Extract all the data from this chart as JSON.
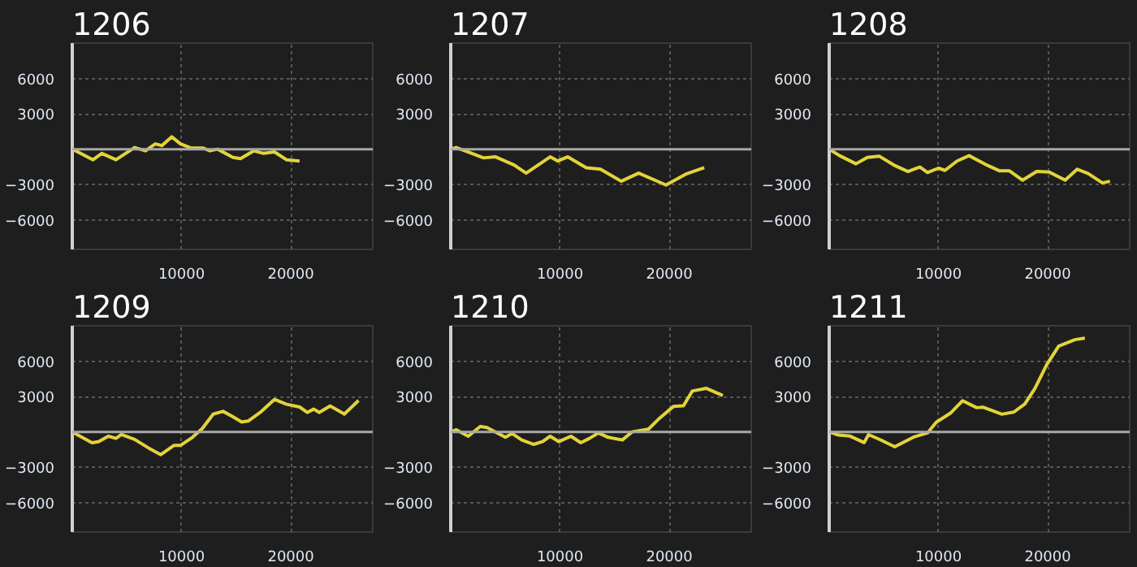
{
  "chart_data": [
    {
      "type": "line",
      "title": "1206",
      "xlim": [
        0,
        27500
      ],
      "ylim": [
        -8500,
        9000
      ],
      "xticks": [
        10000,
        20000
      ],
      "yticks": [
        -6000,
        -3000,
        3000,
        6000
      ],
      "grid": true,
      "ref_lines": [
        {
          "axis": "y",
          "value": 0,
          "color": "#a8a8a8"
        }
      ],
      "series": [
        {
          "color": "#e3d33b",
          "x": [
            0,
            1900,
            2700,
            4000,
            5700,
            6700,
            7600,
            8200,
            9100,
            9900,
            10900,
            12000,
            12600,
            13300,
            14700,
            15400,
            16600,
            17500,
            18500,
            19600,
            20800
          ],
          "values": [
            0,
            -900,
            -360,
            -900,
            140,
            -140,
            450,
            300,
            1050,
            450,
            90,
            90,
            -140,
            0,
            -700,
            -800,
            -140,
            -360,
            -230,
            -900,
            -1000
          ]
        }
      ]
    },
    {
      "type": "line",
      "title": "1207",
      "xlim": [
        0,
        27500
      ],
      "ylim": [
        -8500,
        9000
      ],
      "xticks": [
        10000,
        20000
      ],
      "yticks": [
        -6000,
        -3000,
        3000,
        6000
      ],
      "grid": true,
      "ref_lines": [
        {
          "axis": "y",
          "value": 0,
          "color": "#a8a8a8"
        }
      ],
      "series": [
        {
          "color": "#e3d33b",
          "x": [
            0,
            500,
            1700,
            3000,
            4100,
            5800,
            6900,
            8000,
            9100,
            9800,
            10700,
            12400,
            13700,
            15600,
            17200,
            19700,
            21500,
            23200
          ],
          "values": [
            0,
            140,
            -280,
            -740,
            -650,
            -1340,
            -2030,
            -1340,
            -650,
            -1000,
            -650,
            -1570,
            -1700,
            -2720,
            -2030,
            -3040,
            -2120,
            -1570
          ]
        }
      ]
    },
    {
      "type": "line",
      "title": "1208",
      "xlim": [
        0,
        27500
      ],
      "ylim": [
        -8500,
        9000
      ],
      "xticks": [
        10000,
        20000
      ],
      "yticks": [
        -6000,
        -3000,
        3000,
        6000
      ],
      "grid": true,
      "ref_lines": [
        {
          "axis": "y",
          "value": 0,
          "color": "#a8a8a8"
        }
      ],
      "series": [
        {
          "color": "#e3d33b",
          "x": [
            0,
            950,
            2450,
            3500,
            4600,
            5900,
            7200,
            8300,
            9000,
            10000,
            10600,
            11700,
            12800,
            14500,
            15600,
            16500,
            17700,
            19000,
            20100,
            21600,
            22700,
            23700,
            25000,
            25700
          ],
          "values": [
            0,
            -550,
            -1240,
            -690,
            -600,
            -1340,
            -1890,
            -1520,
            -1980,
            -1610,
            -1800,
            -1010,
            -550,
            -1380,
            -1840,
            -1840,
            -2630,
            -1890,
            -1930,
            -2630,
            -1700,
            -2070,
            -2860,
            -2720
          ]
        }
      ]
    },
    {
      "type": "line",
      "title": "1209",
      "xlim": [
        0,
        27500
      ],
      "ylim": [
        -8500,
        9000
      ],
      "xticks": [
        10000,
        20000
      ],
      "yticks": [
        -6000,
        -3000,
        3000,
        6000
      ],
      "grid": true,
      "ref_lines": [
        {
          "axis": "y",
          "value": 0,
          "color": "#a8a8a8"
        }
      ],
      "series": [
        {
          "color": "#e3d33b",
          "x": [
            0,
            1800,
            2400,
            3300,
            4000,
            4500,
            5700,
            7000,
            8100,
            9300,
            9900,
            11000,
            11900,
            12900,
            13800,
            14700,
            15500,
            16100,
            17200,
            18500,
            19600,
            20800,
            21500,
            22100,
            22600,
            23600,
            24900,
            26200
          ],
          "values": [
            0,
            -920,
            -830,
            -370,
            -550,
            -230,
            -640,
            -1380,
            -1930,
            -1150,
            -1150,
            -460,
            280,
            1510,
            1740,
            1280,
            830,
            920,
            1650,
            2750,
            2340,
            2110,
            1650,
            1930,
            1650,
            2200,
            1510,
            2660
          ]
        }
      ]
    },
    {
      "type": "line",
      "title": "1210",
      "xlim": [
        0,
        27500
      ],
      "ylim": [
        -8500,
        9000
      ],
      "xticks": [
        10000,
        20000
      ],
      "yticks": [
        -6000,
        -3000,
        3000,
        6000
      ],
      "grid": true,
      "ref_lines": [
        {
          "axis": "y",
          "value": 0,
          "color": "#a8a8a8"
        }
      ],
      "series": [
        {
          "color": "#e3d33b",
          "x": [
            0,
            500,
            1600,
            2700,
            3300,
            5000,
            5600,
            6500,
            7600,
            8400,
            9100,
            9900,
            11000,
            11900,
            12700,
            13500,
            14400,
            15700,
            16600,
            18100,
            19100,
            20400,
            21300,
            22100,
            23400,
            24300,
            24900
          ],
          "values": [
            0,
            180,
            -370,
            460,
            370,
            -460,
            -140,
            -690,
            -1060,
            -830,
            -370,
            -830,
            -370,
            -920,
            -550,
            -90,
            -460,
            -690,
            0,
            230,
            1150,
            2170,
            2210,
            3460,
            3690,
            3320,
            3090
          ]
        }
      ]
    },
    {
      "type": "line",
      "title": "1211",
      "xlim": [
        0,
        27500
      ],
      "ylim": [
        -8500,
        9000
      ],
      "xticks": [
        10000,
        20000
      ],
      "yticks": [
        -6000,
        -3000,
        3000,
        6000
      ],
      "grid": true,
      "ref_lines": [
        {
          "axis": "y",
          "value": 0,
          "color": "#a8a8a8"
        }
      ],
      "series": [
        {
          "color": "#e3d33b",
          "x": [
            0,
            850,
            1900,
            3200,
            3600,
            4700,
            6000,
            7700,
            9000,
            9800,
            11100,
            12200,
            13500,
            14100,
            15800,
            16900,
            17900,
            18800,
            19900,
            21000,
            22500,
            23400
          ],
          "values": [
            0,
            -270,
            -360,
            -910,
            -230,
            -680,
            -1270,
            -450,
            -90,
            820,
            1590,
            2640,
            2050,
            2090,
            1500,
            1680,
            2360,
            3640,
            5680,
            7270,
            7820,
            7950
          ]
        }
      ]
    }
  ]
}
